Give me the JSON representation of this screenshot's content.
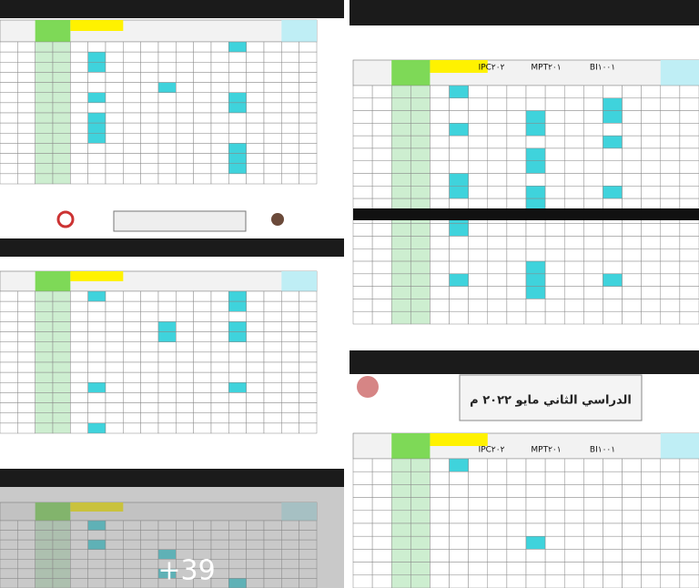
{
  "panels": [
    {
      "header_labels": [
        "IPC٢٠٢",
        "MPT٢٠١",
        "BI١٠٠١"
      ]
    },
    {
      "header_labels": [
        "IPC٢٠٢",
        "MPT٢٠١",
        "BI١٠٠١"
      ],
      "caption": "الدراسي الثاني مايو ٢٠٢٢ م"
    }
  ],
  "overlay": {
    "more_count": "+39"
  }
}
